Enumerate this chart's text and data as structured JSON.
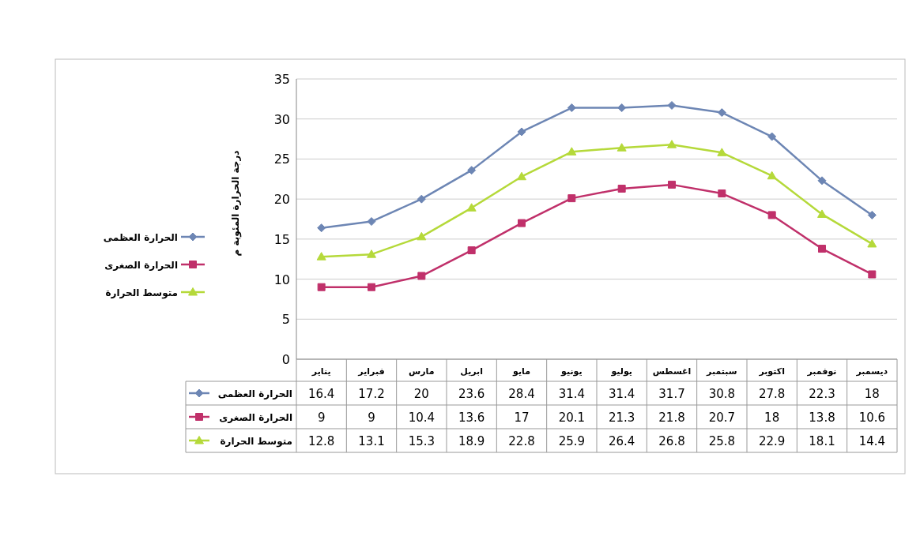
{
  "chart_data": {
    "type": "line",
    "ylabel": "درجة الحرارة المئوية م",
    "categories": [
      "يناير",
      "فبراير",
      "مارس",
      "ابريل",
      "مايو",
      "يونيو",
      "يوليو",
      "اغسطس",
      "سبتمبر",
      "اكتوبر",
      "نوفمبر",
      "ديسمبر"
    ],
    "series": [
      {
        "name": "الحرارة العظمى",
        "color": "#6d86b4",
        "marker": "diamond",
        "values": [
          16.4,
          17.2,
          20,
          23.6,
          28.4,
          31.4,
          31.4,
          31.7,
          30.8,
          27.8,
          22.3,
          18
        ]
      },
      {
        "name": "الحرارة الصغرى",
        "color": "#c0306a",
        "marker": "square",
        "values": [
          9,
          9,
          10.4,
          13.6,
          17,
          20.1,
          21.3,
          21.8,
          20.7,
          18,
          13.8,
          10.6
        ]
      },
      {
        "name": "متوسط الحرارة",
        "color": "#b5d93a",
        "marker": "triangle",
        "values": [
          12.8,
          13.1,
          15.3,
          18.9,
          22.8,
          25.9,
          26.4,
          26.8,
          25.8,
          22.9,
          18.1,
          14.4
        ]
      }
    ],
    "ylim": [
      0,
      35
    ],
    "yticks": [
      0,
      5,
      10,
      15,
      20,
      25,
      30,
      35
    ],
    "grid": "y",
    "legend": "left",
    "data_labels": true
  }
}
